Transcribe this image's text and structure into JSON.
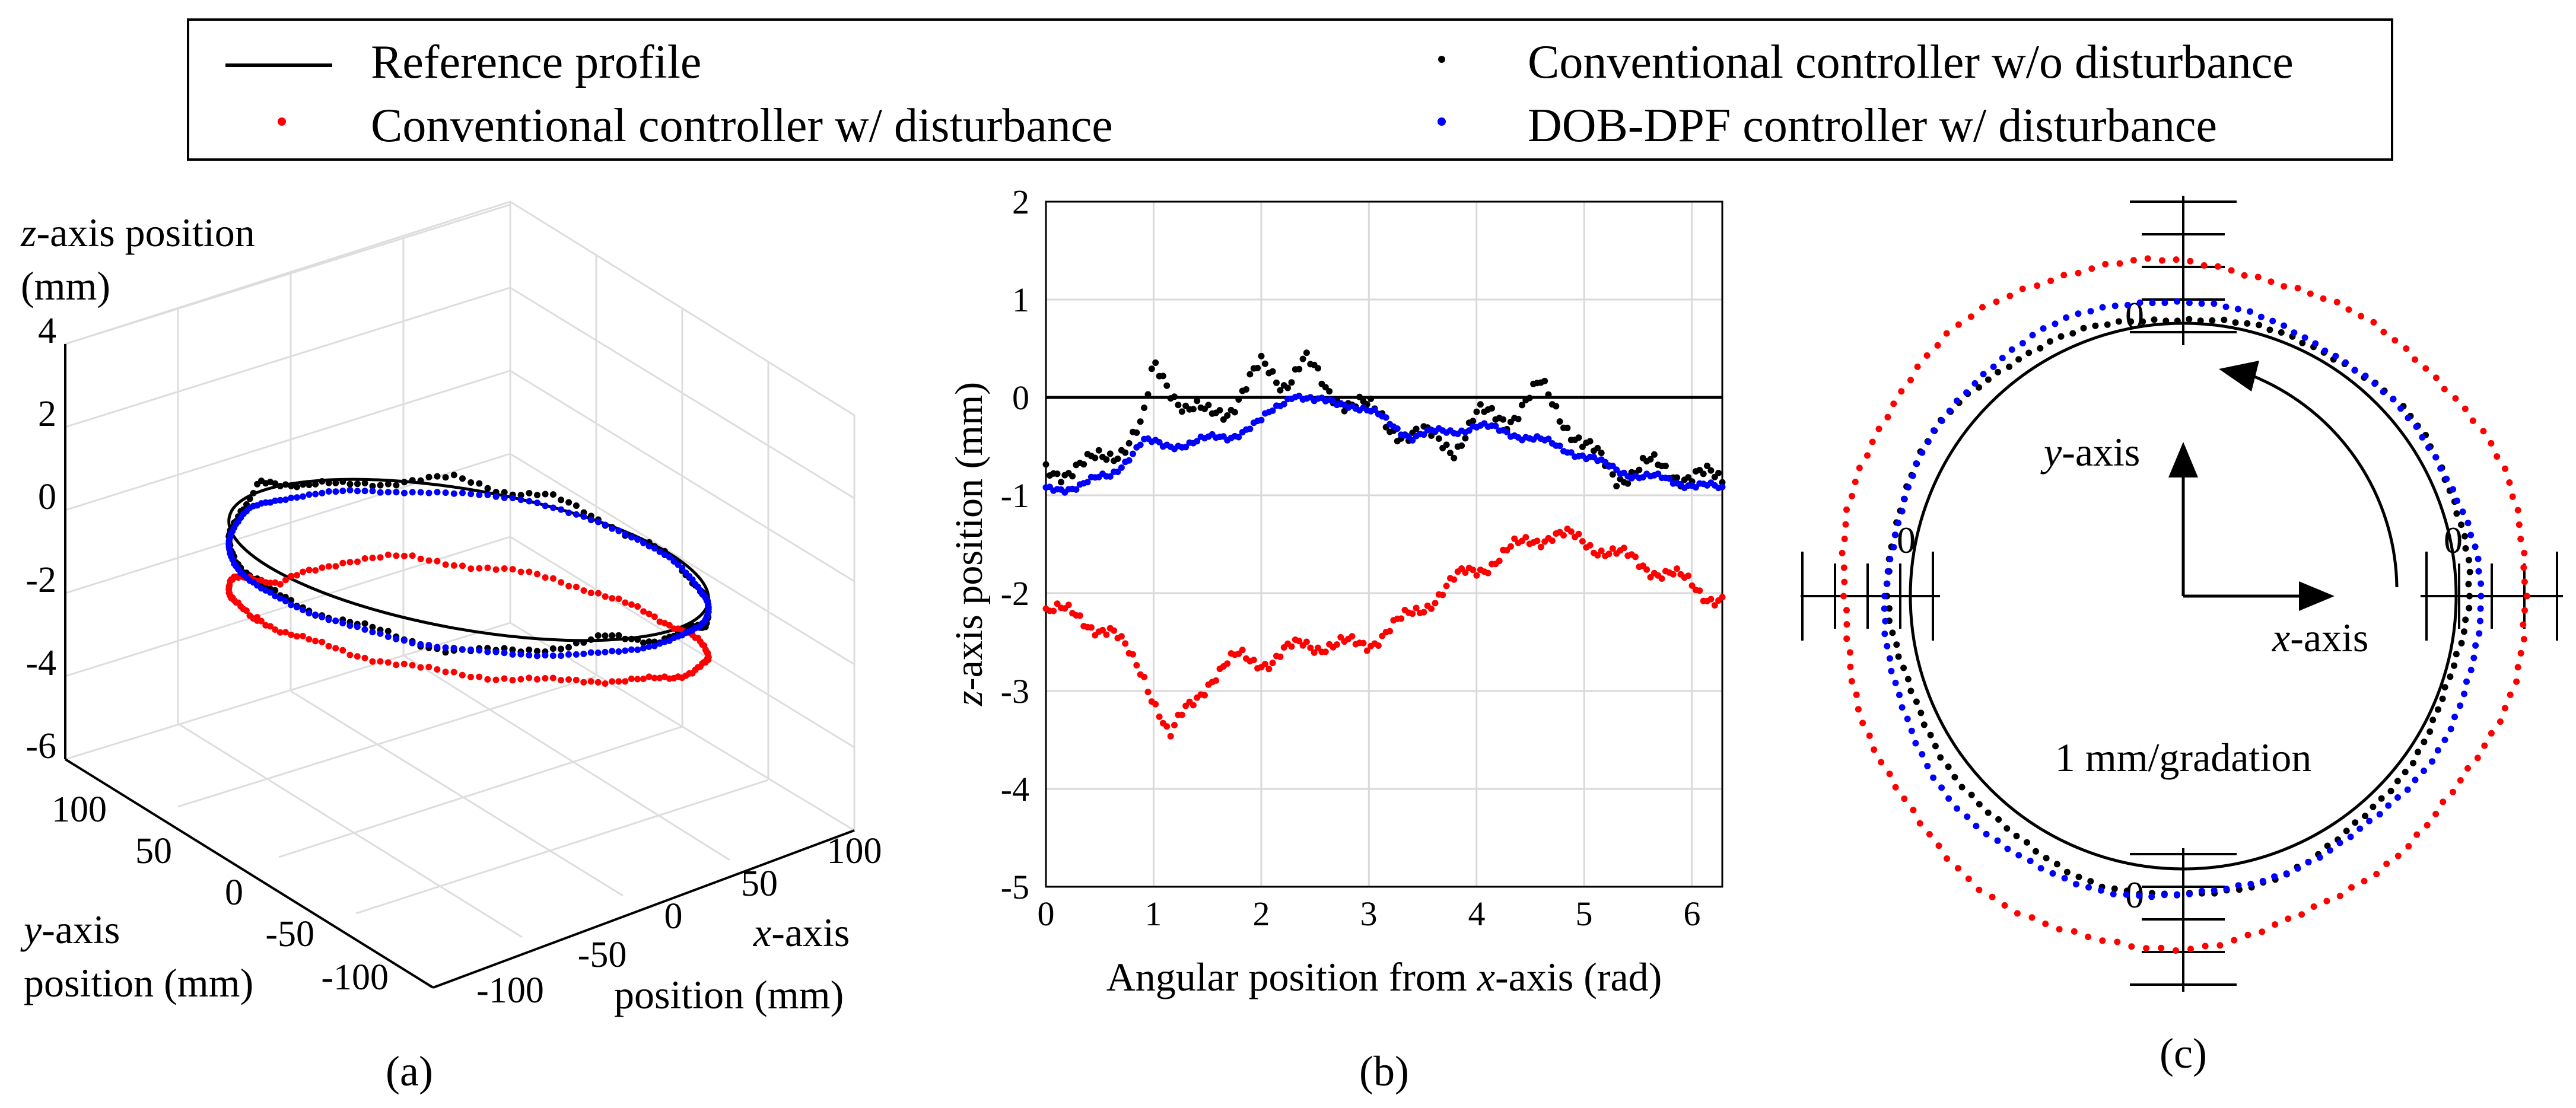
{
  "legend": {
    "entries": [
      {
        "label": "Reference profile",
        "marker": "line",
        "color": "#000000"
      },
      {
        "label": "Conventional controller w/o disturbance",
        "marker": "dot",
        "color": "#000000"
      },
      {
        "label": "Conventional controller w/ disturbance",
        "marker": "dot",
        "color": "#ff0000"
      },
      {
        "label": "DOB-DPF controller w/ disturbance",
        "marker": "dot",
        "color": "#0000ff"
      }
    ]
  },
  "colors": {
    "reference": "#000000",
    "conv_no_dist": "#000000",
    "conv_dist": "#ff0000",
    "dobdpf": "#0000ff",
    "grid": "#d9d9d9"
  },
  "panels": {
    "a": {
      "caption": "(a)",
      "zlabel_italic": "z",
      "zlabel_rest": "-axis position",
      "zlabel_line2": "(mm)",
      "ylabel_italic": "y",
      "ylabel_rest": "-axis",
      "ylabel_line2": "position (mm)",
      "xlabel_italic": "x",
      "xlabel_rest": "-axis",
      "xlabel_line2": "position (mm)",
      "z_ticks": [
        "4",
        "2",
        "0",
        "-2",
        "-4",
        "-6"
      ],
      "y_ticks": [
        "100",
        "50",
        "0",
        "-50",
        "-100"
      ],
      "x_ticks": [
        "-100",
        "-50",
        "0",
        "50",
        "100"
      ]
    },
    "b": {
      "caption": "(b)",
      "ylabel_italic": "z",
      "ylabel_rest": "-axis position (mm)",
      "xlabel_pre": "Angular position from ",
      "xlabel_italic": "x",
      "xlabel_post": "-axis (rad)",
      "x_ticks": [
        "0",
        "1",
        "2",
        "3",
        "4",
        "5",
        "6"
      ],
      "y_ticks": [
        "2",
        "1",
        "0",
        "-1",
        "-2",
        "-3",
        "-4",
        "-5"
      ]
    },
    "c": {
      "caption": "(c)",
      "yaxis_italic": "y",
      "yaxis_rest": "-axis",
      "xaxis_italic": "x",
      "xaxis_rest": "-axis",
      "gradation": "1 mm/gradation",
      "zero_label": "0"
    }
  },
  "chart_data": [
    {
      "type": "scatter",
      "panel": "b",
      "title": "",
      "xlabel": "Angular position from x-axis (rad)",
      "ylabel": "z-axis position (mm)",
      "xlim": [
        0,
        6.283
      ],
      "ylim": [
        -5,
        2
      ],
      "grid": true,
      "x_from": 0,
      "x_to": 6.283,
      "points_per_series": 180,
      "series": [
        {
          "name": "Reference profile",
          "style": "line",
          "color": "#000000",
          "anchors": [
            [
              0,
              0
            ],
            [
              6.283,
              0
            ]
          ]
        },
        {
          "name": "Conventional controller w/o disturbance",
          "style": "dots",
          "color": "#000000",
          "anchors": [
            [
              0,
              -0.75
            ],
            [
              0.4,
              -0.7
            ],
            [
              0.7,
              -0.5
            ],
            [
              0.9,
              -0.3
            ],
            [
              1.0,
              0.3
            ],
            [
              1.1,
              0.2
            ],
            [
              1.3,
              -0.1
            ],
            [
              1.5,
              -0.2
            ],
            [
              1.7,
              -0.1
            ],
            [
              2.0,
              0.3
            ],
            [
              2.2,
              0.15
            ],
            [
              2.4,
              0.4
            ],
            [
              2.6,
              0.05
            ],
            [
              2.9,
              -0.05
            ],
            [
              3.2,
              -0.3
            ],
            [
              3.5,
              -0.4
            ],
            [
              3.8,
              -0.5
            ],
            [
              4.0,
              -0.2
            ],
            [
              4.3,
              -0.2
            ],
            [
              4.6,
              0.1
            ],
            [
              4.8,
              -0.2
            ],
            [
              5.0,
              -0.5
            ],
            [
              5.3,
              -0.8
            ],
            [
              5.6,
              -0.7
            ],
            [
              6.0,
              -0.8
            ],
            [
              6.283,
              -0.85
            ]
          ]
        },
        {
          "name": "Conventional controller w/ disturbance",
          "style": "dots",
          "color": "#ff0000",
          "anchors": [
            [
              0,
              -2.15
            ],
            [
              0.3,
              -2.25
            ],
            [
              0.6,
              -2.4
            ],
            [
              0.9,
              -2.8
            ],
            [
              1.05,
              -3.2
            ],
            [
              1.15,
              -3.5
            ],
            [
              1.3,
              -3.2
            ],
            [
              1.5,
              -2.9
            ],
            [
              1.8,
              -2.65
            ],
            [
              2.1,
              -2.7
            ],
            [
              2.4,
              -2.5
            ],
            [
              2.7,
              -2.55
            ],
            [
              3.0,
              -2.5
            ],
            [
              3.3,
              -2.3
            ],
            [
              3.6,
              -2.05
            ],
            [
              3.9,
              -1.8
            ],
            [
              4.2,
              -1.65
            ],
            [
              4.5,
              -1.45
            ],
            [
              4.7,
              -1.4
            ],
            [
              4.9,
              -1.45
            ],
            [
              5.2,
              -1.55
            ],
            [
              5.5,
              -1.7
            ],
            [
              5.8,
              -1.8
            ],
            [
              6.1,
              -2.0
            ],
            [
              6.283,
              -2.05
            ]
          ]
        },
        {
          "name": "DOB-DPF controller w/ disturbance",
          "style": "dots",
          "color": "#0000ff",
          "anchors": [
            [
              0,
              -0.95
            ],
            [
              0.3,
              -0.9
            ],
            [
              0.6,
              -0.8
            ],
            [
              0.9,
              -0.45
            ],
            [
              1.1,
              -0.5
            ],
            [
              1.4,
              -0.45
            ],
            [
              1.7,
              -0.4
            ],
            [
              2.0,
              -0.25
            ],
            [
              2.3,
              0.05
            ],
            [
              2.5,
              -0.05
            ],
            [
              2.8,
              -0.05
            ],
            [
              3.1,
              -0.2
            ],
            [
              3.4,
              -0.4
            ],
            [
              3.7,
              -0.35
            ],
            [
              4.0,
              -0.3
            ],
            [
              4.3,
              -0.35
            ],
            [
              4.6,
              -0.45
            ],
            [
              4.9,
              -0.55
            ],
            [
              5.2,
              -0.7
            ],
            [
              5.5,
              -0.8
            ],
            [
              5.8,
              -0.85
            ],
            [
              6.1,
              -0.9
            ],
            [
              6.283,
              -0.95
            ]
          ]
        }
      ]
    },
    {
      "type": "polar-scatter",
      "panel": "c",
      "title": "",
      "scale": "1 mm/gradation",
      "reference_radius_mm": 100,
      "points_per_series": 150,
      "series": [
        {
          "name": "Reference profile",
          "style": "line",
          "color": "#000000",
          "offset_mm": 0,
          "amplitude_mm": 0
        },
        {
          "name": "Conventional controller w/o disturbance",
          "style": "dots",
          "color": "#000000",
          "offset_mm": 0.6,
          "amplitude_mm": 0.25
        },
        {
          "name": "Conventional controller w/ disturbance",
          "style": "dots",
          "color": "#ff0000",
          "offset_mm": 2.6,
          "amplitude_mm": 0.3
        },
        {
          "name": "DOB-DPF controller w/ disturbance",
          "style": "dots",
          "color": "#0000ff",
          "offset_mm": 0.9,
          "amplitude_mm": 0.2
        }
      ]
    },
    {
      "type": "scatter3d",
      "panel": "a",
      "title": "",
      "xlabel": "x-axis position (mm)",
      "ylabel": "y-axis position (mm)",
      "zlabel": "z-axis position (mm)",
      "xlim": [
        -100,
        100
      ],
      "ylim": [
        -100,
        100
      ],
      "zlim": [
        -6,
        4
      ],
      "radius_mm": 100,
      "grid": true,
      "series_ref": "uses the z-profiles of panel (b) around a 100 mm radius circle"
    }
  ]
}
